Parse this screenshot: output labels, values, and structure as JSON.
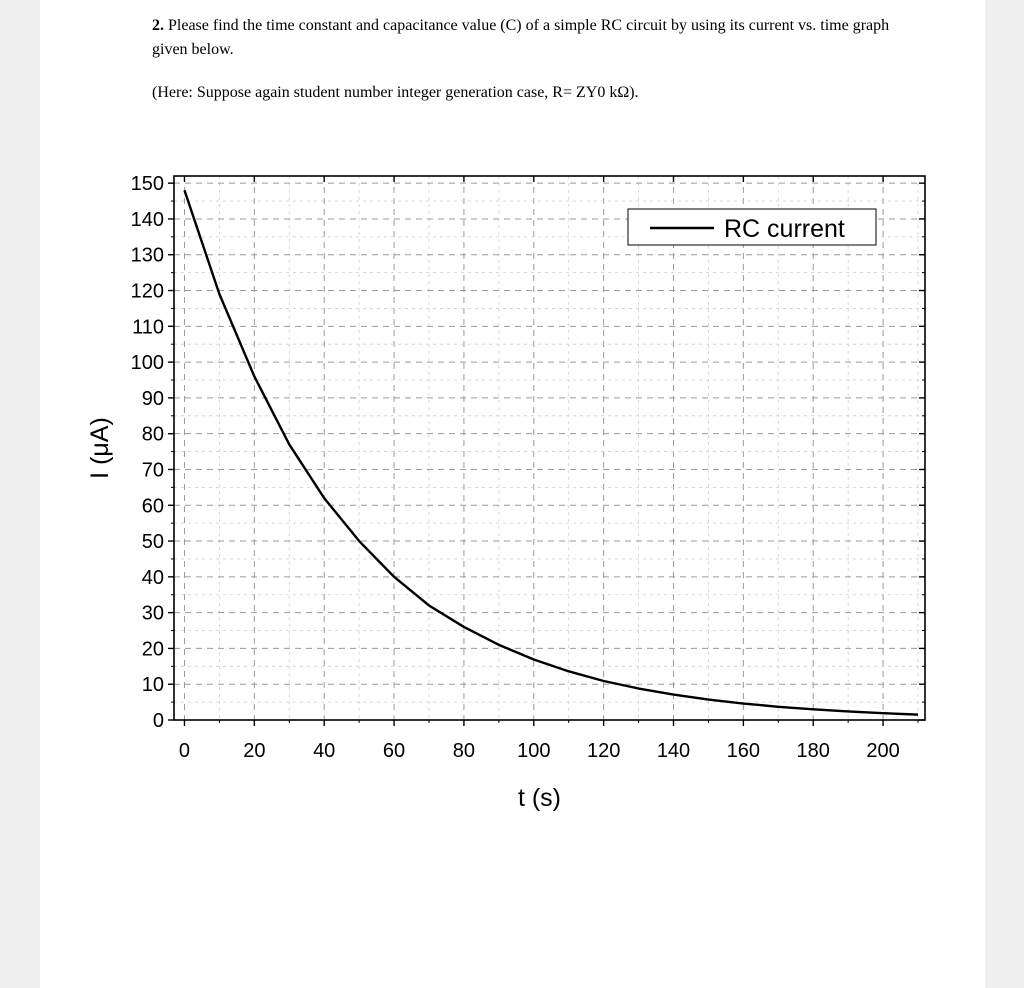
{
  "question": {
    "number": "2.",
    "text": " Please find the time constant and capacitance value (C) of a simple RC circuit by using its current vs. time graph given below.",
    "note": "(Here: Suppose again student number integer generation case, R= ZY0 kΩ)."
  },
  "chart_data": {
    "type": "line",
    "title": "",
    "xlabel": "t (s)",
    "ylabel": "I (μA)",
    "xlim": [
      -3,
      212
    ],
    "ylim": [
      0,
      152
    ],
    "xticks": [
      0,
      20,
      40,
      60,
      80,
      100,
      120,
      140,
      160,
      180,
      200
    ],
    "yticks": [
      0,
      10,
      20,
      30,
      40,
      50,
      60,
      70,
      80,
      90,
      100,
      110,
      120,
      130,
      140,
      150
    ],
    "grid": true,
    "legend_position": "top-right",
    "series": [
      {
        "name": "RC current",
        "color": "#000000",
        "x": [
          0,
          10,
          20,
          30,
          40,
          50,
          60,
          70,
          80,
          90,
          100,
          110,
          120,
          130,
          140,
          150,
          160,
          170,
          180,
          190,
          200,
          210
        ],
        "y": [
          148,
          119,
          96,
          77,
          62,
          50,
          40,
          32,
          26,
          21,
          16.9,
          13.6,
          10.9,
          8.8,
          7.1,
          5.7,
          4.6,
          3.7,
          3.0,
          2.4,
          1.9,
          1.5
        ]
      }
    ]
  }
}
